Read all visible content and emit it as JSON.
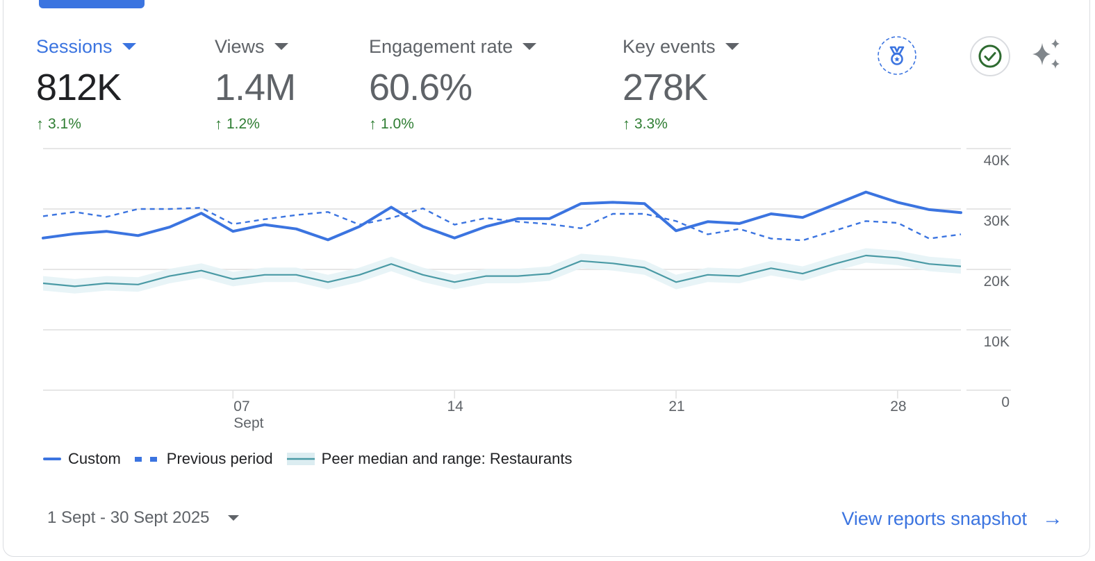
{
  "metrics": [
    {
      "label": "Sessions",
      "value": "812K",
      "change": "3.1%",
      "direction": "up",
      "active": true
    },
    {
      "label": "Views",
      "value": "1.4M",
      "change": "1.2%",
      "direction": "up",
      "active": false
    },
    {
      "label": "Engagement rate",
      "value": "60.6%",
      "change": "1.0%",
      "direction": "up",
      "active": false
    },
    {
      "label": "Key events",
      "value": "278K",
      "change": "3.3%",
      "direction": "up",
      "active": false
    }
  ],
  "icons": {
    "benchmark": "medal-icon",
    "status": "check-circle-icon",
    "insights": "sparkle-icon"
  },
  "colors": {
    "accent": "#3b74e0",
    "positive": "#2e7d32",
    "peer_line": "#4a9aa5",
    "peer_band": "#e6f3f6",
    "grid": "#e6e6e6",
    "text_secondary": "#5f6368"
  },
  "chart_data": {
    "type": "line",
    "title": "",
    "xlabel": "",
    "ylabel": "",
    "x": [
      1,
      2,
      3,
      4,
      5,
      6,
      7,
      8,
      9,
      10,
      11,
      12,
      13,
      14,
      15,
      16,
      17,
      18,
      19,
      20,
      21,
      22,
      23,
      24,
      25,
      26,
      27,
      28,
      29,
      30
    ],
    "x_ticks": [
      {
        "day": 7,
        "label": "07",
        "sublabel": "Sept"
      },
      {
        "day": 14,
        "label": "14",
        "sublabel": ""
      },
      {
        "day": 21,
        "label": "21",
        "sublabel": ""
      },
      {
        "day": 28,
        "label": "28",
        "sublabel": ""
      }
    ],
    "y_ticks": [
      {
        "value": 0,
        "label": "0"
      },
      {
        "value": 10000,
        "label": "10K"
      },
      {
        "value": 20000,
        "label": "20K"
      },
      {
        "value": 30000,
        "label": "30K"
      },
      {
        "value": 40000,
        "label": "40K"
      }
    ],
    "ylim": [
      0,
      40000
    ],
    "xlim": [
      1,
      30
    ],
    "grid": true,
    "y_axis_side": "right",
    "legend_position": "bottom-left",
    "series": [
      {
        "name": "Custom",
        "style": "solid",
        "values": [
          25200,
          25900,
          26300,
          25600,
          27000,
          29300,
          26300,
          27400,
          26700,
          24900,
          27100,
          30300,
          27100,
          25200,
          27100,
          28400,
          28400,
          30900,
          31100,
          30900,
          26400,
          27900,
          27600,
          29200,
          28600,
          30700,
          32800,
          31100,
          29900,
          29400
        ]
      },
      {
        "name": "Previous period",
        "style": "dashed",
        "values": [
          28800,
          29500,
          28700,
          30000,
          30000,
          30200,
          27500,
          28300,
          29000,
          29500,
          27400,
          28500,
          30100,
          27400,
          28500,
          27900,
          27500,
          26800,
          29200,
          29200,
          28000,
          25800,
          26700,
          25100,
          24800,
          26400,
          28000,
          27700,
          25100,
          25800
        ]
      },
      {
        "name": "Peer median and range: Restaurants",
        "style": "band",
        "values": [
          17700,
          17200,
          17700,
          17500,
          18900,
          19800,
          18400,
          19100,
          19100,
          17900,
          19100,
          20900,
          19100,
          17900,
          18900,
          18900,
          19300,
          21400,
          21000,
          20300,
          17900,
          19100,
          18900,
          20200,
          19300,
          20900,
          22300,
          21900,
          20900,
          20500
        ],
        "lower": [
          16500,
          16000,
          16500,
          16300,
          17700,
          18600,
          17200,
          17900,
          17900,
          16700,
          17900,
          19700,
          17900,
          16700,
          17700,
          17700,
          18100,
          20200,
          19800,
          19100,
          16700,
          17900,
          17700,
          19000,
          18100,
          19700,
          21100,
          20700,
          19700,
          19300
        ],
        "upper": [
          18900,
          18400,
          18900,
          18700,
          20100,
          21000,
          19600,
          20300,
          20300,
          19100,
          20300,
          22100,
          20300,
          19100,
          20100,
          20100,
          20500,
          22600,
          22200,
          21500,
          19100,
          20300,
          20100,
          21400,
          20500,
          22100,
          23500,
          23100,
          22100,
          21700
        ]
      }
    ]
  },
  "legend": {
    "items": [
      "Custom",
      "Previous period",
      "Peer median and range: Restaurants"
    ]
  },
  "footer": {
    "date_range": "1 Sept - 30 Sept 2025",
    "view_link": "View reports snapshot"
  }
}
